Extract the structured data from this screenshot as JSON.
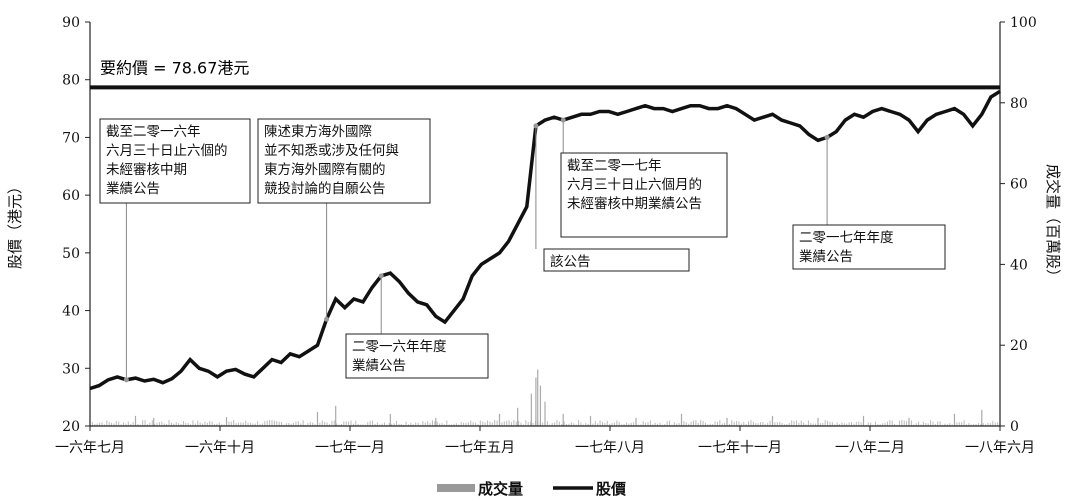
{
  "chart_data": {
    "type": "line",
    "strike_label": "要約價 = 78.67港元",
    "strike_price": 78.67,
    "y_left": {
      "label": "股價（港元）",
      "min": 20,
      "max": 90,
      "ticks": [
        "20",
        "30",
        "40",
        "50",
        "60",
        "70",
        "80",
        "90"
      ]
    },
    "y_right": {
      "label": "成交量（百萬股）",
      "min": 0,
      "max": 100,
      "ticks": [
        "0",
        "20",
        "40",
        "60",
        "80",
        "100"
      ]
    },
    "x_ticks": [
      "一六年七月",
      "一六年十月",
      "一七年一月",
      "一七年五月",
      "一七年八月",
      "一七年十一月",
      "一八年二月",
      "一八年六月"
    ],
    "legend": {
      "volume": "成交量",
      "price": "股價"
    },
    "series": [
      {
        "name": "股價",
        "axis": "left",
        "points": [
          [
            0,
            26.5
          ],
          [
            0.01,
            27
          ],
          [
            0.02,
            28
          ],
          [
            0.03,
            28.5
          ],
          [
            0.04,
            28
          ],
          [
            0.05,
            28.3
          ],
          [
            0.06,
            27.8
          ],
          [
            0.07,
            28.1
          ],
          [
            0.08,
            27.5
          ],
          [
            0.09,
            28.2
          ],
          [
            0.1,
            29.5
          ],
          [
            0.11,
            31.5
          ],
          [
            0.12,
            30
          ],
          [
            0.13,
            29.5
          ],
          [
            0.14,
            28.5
          ],
          [
            0.15,
            29.5
          ],
          [
            0.16,
            29.8
          ],
          [
            0.17,
            29
          ],
          [
            0.18,
            28.5
          ],
          [
            0.19,
            30
          ],
          [
            0.2,
            31.5
          ],
          [
            0.21,
            31
          ],
          [
            0.22,
            32.5
          ],
          [
            0.23,
            32
          ],
          [
            0.24,
            33
          ],
          [
            0.25,
            34
          ],
          [
            0.26,
            38.5
          ],
          [
            0.27,
            42
          ],
          [
            0.28,
            40.5
          ],
          [
            0.29,
            42
          ],
          [
            0.3,
            41.5
          ],
          [
            0.31,
            44
          ],
          [
            0.32,
            46
          ],
          [
            0.33,
            46.5
          ],
          [
            0.34,
            45
          ],
          [
            0.35,
            43
          ],
          [
            0.36,
            41.5
          ],
          [
            0.37,
            41
          ],
          [
            0.38,
            39
          ],
          [
            0.39,
            38
          ],
          [
            0.4,
            40
          ],
          [
            0.41,
            42
          ],
          [
            0.42,
            46
          ],
          [
            0.43,
            48
          ],
          [
            0.44,
            49
          ],
          [
            0.45,
            50
          ],
          [
            0.46,
            52
          ],
          [
            0.47,
            55
          ],
          [
            0.48,
            58
          ],
          [
            0.49,
            72
          ],
          [
            0.5,
            73
          ],
          [
            0.51,
            73.5
          ],
          [
            0.52,
            73
          ],
          [
            0.53,
            73.5
          ],
          [
            0.54,
            74
          ],
          [
            0.55,
            74
          ],
          [
            0.56,
            74.5
          ],
          [
            0.57,
            74.5
          ],
          [
            0.58,
            74
          ],
          [
            0.59,
            74.5
          ],
          [
            0.6,
            75
          ],
          [
            0.61,
            75.5
          ],
          [
            0.62,
            75
          ],
          [
            0.63,
            75
          ],
          [
            0.64,
            74.5
          ],
          [
            0.65,
            75
          ],
          [
            0.66,
            75.5
          ],
          [
            0.67,
            75.5
          ],
          [
            0.68,
            75
          ],
          [
            0.69,
            75
          ],
          [
            0.7,
            75.5
          ],
          [
            0.71,
            75
          ],
          [
            0.72,
            74
          ],
          [
            0.73,
            73
          ],
          [
            0.74,
            73.5
          ],
          [
            0.75,
            74
          ],
          [
            0.76,
            73
          ],
          [
            0.77,
            72.5
          ],
          [
            0.78,
            72
          ],
          [
            0.79,
            70.5
          ],
          [
            0.8,
            69.5
          ],
          [
            0.81,
            70
          ],
          [
            0.82,
            71
          ],
          [
            0.83,
            73
          ],
          [
            0.84,
            74
          ],
          [
            0.85,
            73.5
          ],
          [
            0.86,
            74.5
          ],
          [
            0.87,
            75
          ],
          [
            0.88,
            74.5
          ],
          [
            0.89,
            74
          ],
          [
            0.9,
            73
          ],
          [
            0.91,
            71
          ],
          [
            0.92,
            73
          ],
          [
            0.93,
            74
          ],
          [
            0.94,
            74.5
          ],
          [
            0.95,
            75
          ],
          [
            0.96,
            74
          ],
          [
            0.97,
            72
          ],
          [
            0.98,
            74
          ],
          [
            0.99,
            77
          ],
          [
            1.0,
            78
          ]
        ]
      },
      {
        "name": "成交量",
        "axis": "right",
        "spikes": [
          [
            0.05,
            2.5
          ],
          [
            0.07,
            2
          ],
          [
            0.15,
            2.2
          ],
          [
            0.25,
            3.5
          ],
          [
            0.27,
            5
          ],
          [
            0.33,
            3
          ],
          [
            0.38,
            2
          ],
          [
            0.45,
            3
          ],
          [
            0.47,
            4.5
          ],
          [
            0.485,
            8
          ],
          [
            0.49,
            12
          ],
          [
            0.492,
            14
          ],
          [
            0.495,
            10
          ],
          [
            0.5,
            6
          ],
          [
            0.52,
            3
          ],
          [
            0.55,
            2.5
          ],
          [
            0.6,
            2
          ],
          [
            0.65,
            3
          ],
          [
            0.7,
            2
          ],
          [
            0.75,
            2.5
          ],
          [
            0.8,
            2
          ],
          [
            0.85,
            2.5
          ],
          [
            0.9,
            2
          ],
          [
            0.95,
            3
          ],
          [
            0.98,
            4
          ]
        ]
      }
    ],
    "annotations": [
      {
        "lines": [
          "截至二零一六年",
          "六月三十日止六個的",
          "未經審核中期",
          "業績公告"
        ],
        "at": 0.04
      },
      {
        "lines": [
          "陳述東方海外國際",
          "並不知悉或涉及任何與",
          "東方海外國際有關的",
          "競投討論的自願公告"
        ],
        "at": 0.26
      },
      {
        "lines": [
          "二零一六年年度",
          "業績公告"
        ],
        "at": 0.32
      },
      {
        "lines": [
          "截至二零一七年",
          "六月三十日止六個月的",
          "未經審核中期業績公告"
        ],
        "at": 0.52
      },
      {
        "lines": [
          "該公告"
        ],
        "at": 0.49
      },
      {
        "lines": [
          "二零一七年年度",
          "業績公告"
        ],
        "at": 0.81
      }
    ]
  }
}
